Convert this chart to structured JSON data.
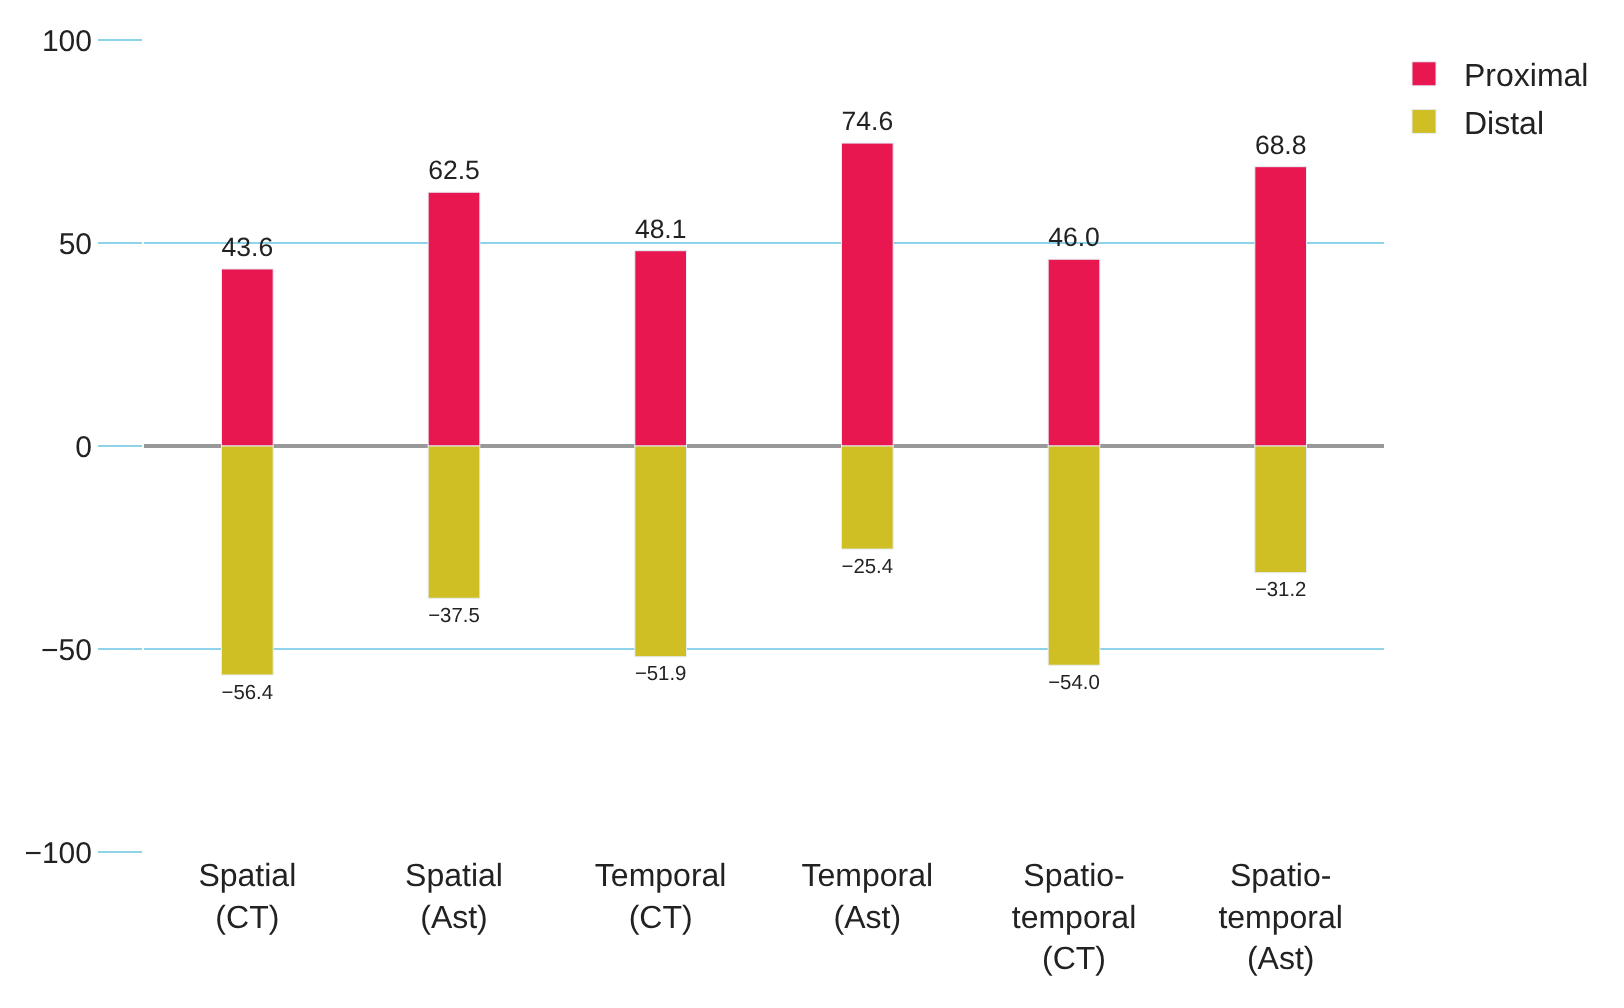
{
  "chart_data": {
    "type": "bar",
    "stacked": true,
    "categories": [
      "Spatial\n(CT)",
      "Spatial\n(Ast)",
      "Temporal\n(CT)",
      "Temporal\n(Ast)",
      "Spatio-\ntemporal\n(CT)",
      "Spatio-\ntemporal\n(Ast)"
    ],
    "series": [
      {
        "name": "Proximal",
        "color": "#e8174f",
        "values": [
          43.6,
          62.5,
          48.1,
          74.6,
          46.0,
          68.8
        ],
        "value_labels": [
          "43.6",
          "62.5",
          "48.1",
          "74.6",
          "46.0",
          "68.8"
        ]
      },
      {
        "name": "Distal",
        "color": "#cfbf24",
        "values": [
          -56.4,
          -37.5,
          -51.9,
          -25.4,
          -54.0,
          -31.2
        ],
        "value_labels": [
          "−56.4",
          "−37.5",
          "−51.9",
          "−25.4",
          "−54.0",
          "−31.2"
        ]
      }
    ],
    "ylim": [
      -100,
      100
    ],
    "yticks": [
      -100,
      -50,
      0,
      50,
      100
    ],
    "grid": "y",
    "legend": "top right"
  }
}
